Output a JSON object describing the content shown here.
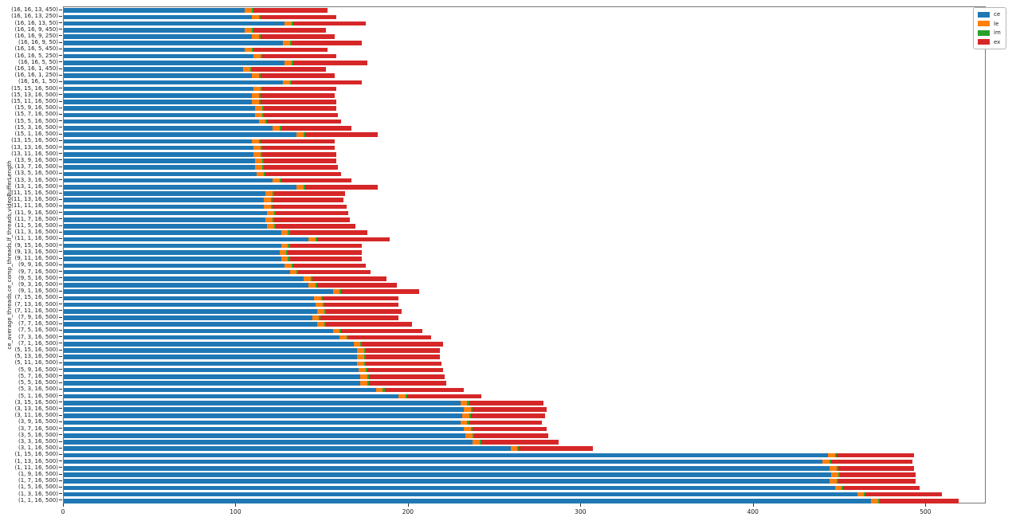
{
  "chart_data": {
    "type": "bar",
    "orientation": "horizontal",
    "stacked": true,
    "title": "",
    "xlabel": "",
    "ylabel": "ce_average_threads,ce_comp_threads,lf_threads,videoBufferLength",
    "xlim": [
      0,
      535
    ],
    "x_ticks": [
      0,
      100,
      200,
      300,
      400,
      500
    ],
    "grid": false,
    "legend_position": "upper right",
    "categories": [
      "(16, 16, 13, 450)",
      "(16, 16, 13, 250)",
      "(16, 16, 13, 50)",
      "(16, 16, 9, 450)",
      "(16, 16, 9, 250)",
      "(16, 16, 9, 50)",
      "(16, 16, 5, 450)",
      "(16, 16, 5, 250)",
      "(16, 16, 5, 50)",
      "(16, 16, 1, 450)",
      "(16, 16, 1, 250)",
      "(16, 16, 1, 50)",
      "(15, 15, 16, 500)",
      "(15, 13, 16, 500)",
      "(15, 11, 16, 500)",
      "(15, 9, 16, 500)",
      "(15, 7, 16, 500)",
      "(15, 5, 16, 500)",
      "(15, 3, 16, 500)",
      "(15, 1, 16, 500)",
      "(13, 15, 16, 500)",
      "(13, 13, 16, 500)",
      "(13, 11, 16, 500)",
      "(13, 9, 16, 500)",
      "(13, 7, 16, 500)",
      "(13, 5, 16, 500)",
      "(13, 3, 16, 500)",
      "(13, 1, 16, 500)",
      "(11, 15, 16, 500)",
      "(11, 13, 16, 500)",
      "(11, 11, 16, 500)",
      "(11, 9, 16, 500)",
      "(11, 7, 16, 500)",
      "(11, 5, 16, 500)",
      "(11, 3, 16, 500)",
      "(11, 1, 16, 500)",
      "(9, 15, 16, 500)",
      "(9, 13, 16, 500)",
      "(9, 11, 16, 500)",
      "(9, 9, 16, 500)",
      "(9, 7, 16, 500)",
      "(9, 5, 16, 500)",
      "(9, 3, 16, 500)",
      "(9, 1, 16, 500)",
      "(7, 15, 16, 500)",
      "(7, 13, 16, 500)",
      "(7, 11, 16, 500)",
      "(7, 9, 16, 500)",
      "(7, 7, 16, 500)",
      "(7, 5, 16, 500)",
      "(7, 3, 16, 500)",
      "(7, 1, 16, 500)",
      "(5, 15, 16, 500)",
      "(5, 13, 16, 500)",
      "(5, 11, 16, 500)",
      "(5, 9, 16, 500)",
      "(5, 7, 16, 500)",
      "(5, 5, 16, 500)",
      "(5, 3, 16, 500)",
      "(5, 1, 16, 500)",
      "(3, 15, 16, 500)",
      "(3, 13, 16, 500)",
      "(3, 11, 16, 500)",
      "(3, 9, 16, 500)",
      "(3, 7, 16, 500)",
      "(3, 5, 16, 500)",
      "(3, 3, 16, 500)",
      "(3, 1, 16, 500)",
      "(1, 15, 16, 500)",
      "(1, 13, 16, 500)",
      "(1, 11, 16, 500)",
      "(1, 9, 16, 500)",
      "(1, 7, 16, 500)",
      "(1, 5, 16, 500)",
      "(1, 3, 16, 500)",
      "(1, 1, 16, 500)"
    ],
    "series": [
      {
        "name": "ce",
        "color": "#1f77b4",
        "values": [
          105,
          109,
          128,
          105,
          109,
          127,
          105,
          110,
          128,
          104,
          109,
          127,
          110,
          109,
          109,
          111,
          111,
          113,
          121,
          135,
          109,
          110,
          110,
          111,
          111,
          112,
          121,
          135,
          117,
          116,
          116,
          118,
          117,
          118,
          126,
          142,
          126,
          125,
          126,
          128,
          131,
          139,
          142,
          156,
          145,
          146,
          147,
          144,
          147,
          156,
          160,
          168,
          170,
          170,
          170,
          171,
          172,
          172,
          181,
          194,
          230,
          232,
          231,
          230,
          232,
          233,
          237,
          259,
          443,
          440,
          444,
          445,
          444,
          447,
          460,
          468
        ]
      },
      {
        "name": "le",
        "color": "#ff7f0e",
        "values": [
          4,
          4,
          4,
          4,
          4,
          4,
          4,
          4,
          4,
          4,
          4,
          4,
          4,
          4,
          4,
          4,
          4,
          4,
          4,
          4,
          4,
          4,
          4,
          4,
          4,
          4,
          4,
          4,
          4,
          4,
          4,
          4,
          4,
          4,
          4,
          4,
          4,
          4,
          4,
          4,
          4,
          4,
          4,
          4,
          4,
          4,
          4,
          4,
          4,
          4,
          4,
          4,
          4,
          4,
          4,
          4,
          4,
          4,
          4,
          4,
          4,
          4,
          4,
          4,
          4,
          4,
          4,
          4,
          4,
          4,
          4,
          4,
          4,
          4,
          4,
          4
        ]
      },
      {
        "name": "im",
        "color": "#2ca02c",
        "values": [
          1,
          1,
          1,
          1,
          1,
          1,
          1,
          1,
          1,
          1,
          1,
          1,
          1,
          1,
          1,
          1,
          1,
          1,
          1,
          1,
          1,
          1,
          1,
          1,
          1,
          1,
          1,
          1,
          1,
          1,
          1,
          1,
          1,
          1,
          1,
          1,
          1,
          1,
          1,
          1,
          1,
          1,
          1,
          1,
          1,
          1,
          1,
          1,
          1,
          1,
          1,
          1,
          1,
          1,
          1,
          1,
          1,
          1,
          1,
          1,
          1,
          1,
          1,
          1,
          1,
          1,
          1,
          1,
          1,
          1,
          1,
          1,
          1,
          1,
          1,
          1
        ]
      },
      {
        "name": "ex",
        "color": "#d62728",
        "values": [
          43,
          44,
          42,
          42,
          43,
          41,
          43,
          43,
          43,
          43,
          43,
          41,
          43,
          43,
          44,
          42,
          43,
          43,
          41,
          42,
          43,
          42,
          43,
          42,
          43,
          44,
          41,
          42,
          41,
          41,
          43,
          42,
          44,
          46,
          45,
          42,
          42,
          43,
          42,
          42,
          42,
          43,
          46,
          45,
          44,
          43,
          44,
          45,
          50,
          47,
          48,
          47,
          43,
          43,
          44,
          44,
          44,
          45,
          46,
          43,
          43,
          43,
          43,
          42,
          43,
          43,
          45,
          43,
          45,
          47,
          44,
          44,
          45,
          44,
          44,
          46
        ]
      }
    ]
  }
}
